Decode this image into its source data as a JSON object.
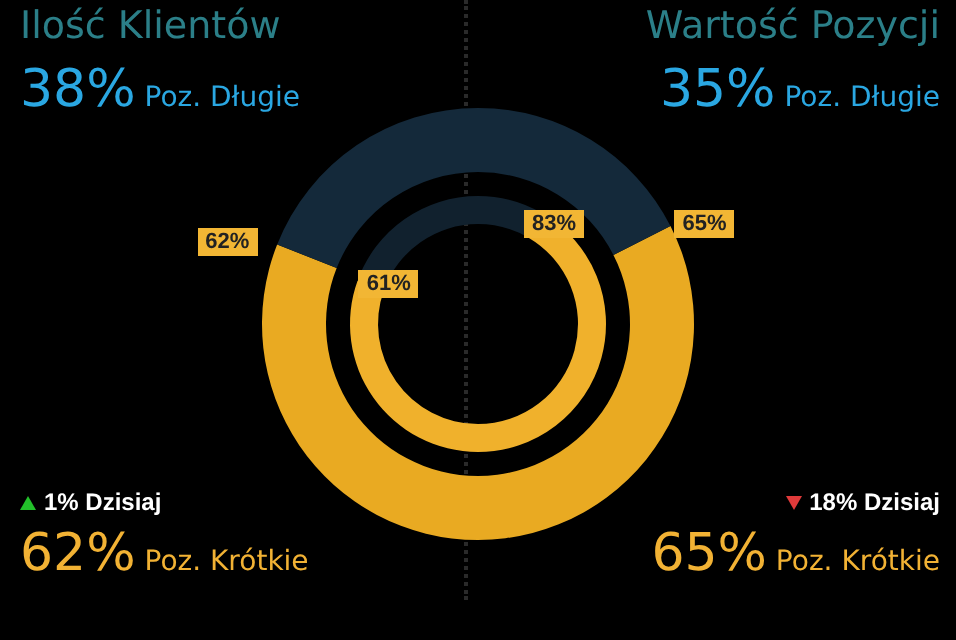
{
  "chart_data": [
    {
      "type": "donut",
      "title": "Ilość Klientów",
      "categories": [
        "Poz. Krótkie",
        "Poz. Długie"
      ],
      "series": [
        {
          "values": [
            62,
            38
          ],
          "colors": [
            "#e9aa22",
            "#14293a"
          ],
          "value_labels": [
            "62%",
            "38%"
          ]
        },
        {
          "values": [
            61,
            39
          ],
          "colors": [
            "#f0b12c",
            "#11212e"
          ],
          "value_labels": [
            "61%",
            null
          ]
        }
      ],
      "annotations": [
        "1% Dzisiaj"
      ]
    },
    {
      "type": "donut",
      "title": "Wartość Pozycji",
      "categories": [
        "Poz. Krótkie",
        "Poz. Długie"
      ],
      "series": [
        {
          "values": [
            65,
            35
          ],
          "colors": [
            "#e9aa22",
            "#14293a"
          ],
          "value_labels": [
            "65%",
            "35%"
          ]
        },
        {
          "values": [
            83,
            17
          ],
          "colors": [
            "#f0b12c",
            "#11212e"
          ],
          "value_labels": [
            "83%",
            null
          ]
        }
      ],
      "annotations": [
        "18% Dzisiaj"
      ]
    }
  ]
}
